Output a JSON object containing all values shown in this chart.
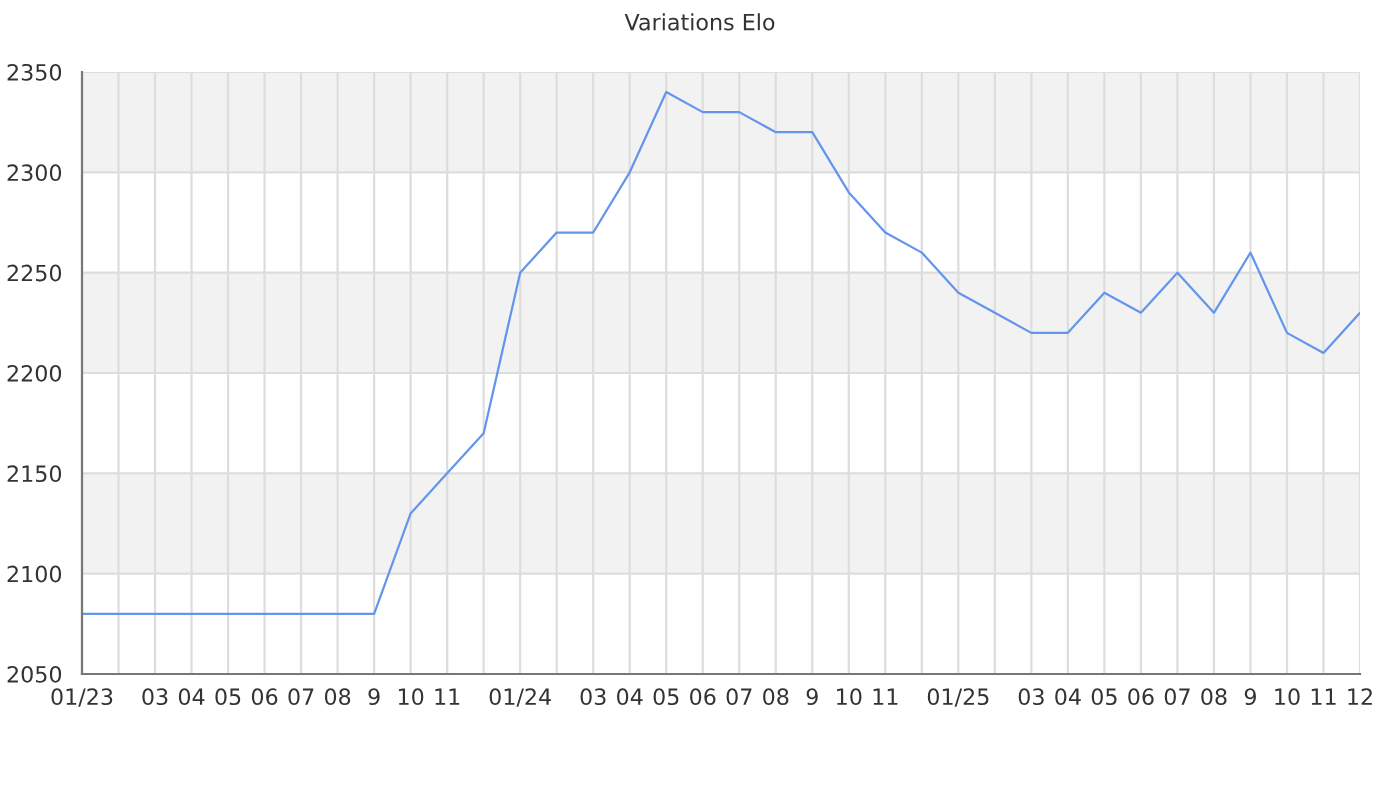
{
  "chart_data": {
    "type": "line",
    "title": "Variations Elo",
    "categories": [
      "01/23",
      null,
      "03",
      "04",
      "05",
      "06",
      "07",
      "08",
      "9",
      "10",
      "11",
      null,
      "01/24",
      null,
      "03",
      "04",
      "05",
      "06",
      "07",
      "08",
      "9",
      "10",
      "11",
      null,
      "01/25",
      null,
      "03",
      "04",
      "05",
      "06",
      "07",
      "08",
      "9",
      "10",
      "11",
      "12"
    ],
    "series": [
      {
        "color": "#6495ed",
        "values": [
          2080,
          2080,
          2080,
          2080,
          2080,
          2080,
          2080,
          2080,
          2080,
          2130,
          2150,
          2170,
          2250,
          2270,
          2270,
          2300,
          2340,
          2330,
          2330,
          2320,
          2320,
          2290,
          2270,
          2260,
          2240,
          2230,
          2220,
          2220,
          2240,
          2230,
          2250,
          2230,
          2260,
          2220,
          2210,
          2230
        ]
      }
    ],
    "ylim": [
      2050,
      2350
    ],
    "yticks": [
      2050,
      2100,
      2150,
      2200,
      2250,
      2300,
      2350
    ],
    "grid": true,
    "bands": [
      {
        "axis": "y",
        "from": 2100,
        "to": 2150,
        "color": "#f2f2f2"
      },
      {
        "axis": "y",
        "from": 2200,
        "to": 2250,
        "color": "#f2f2f2"
      },
      {
        "axis": "y",
        "from": 2300,
        "to": 2350,
        "color": "#f2f2f2"
      }
    ]
  }
}
